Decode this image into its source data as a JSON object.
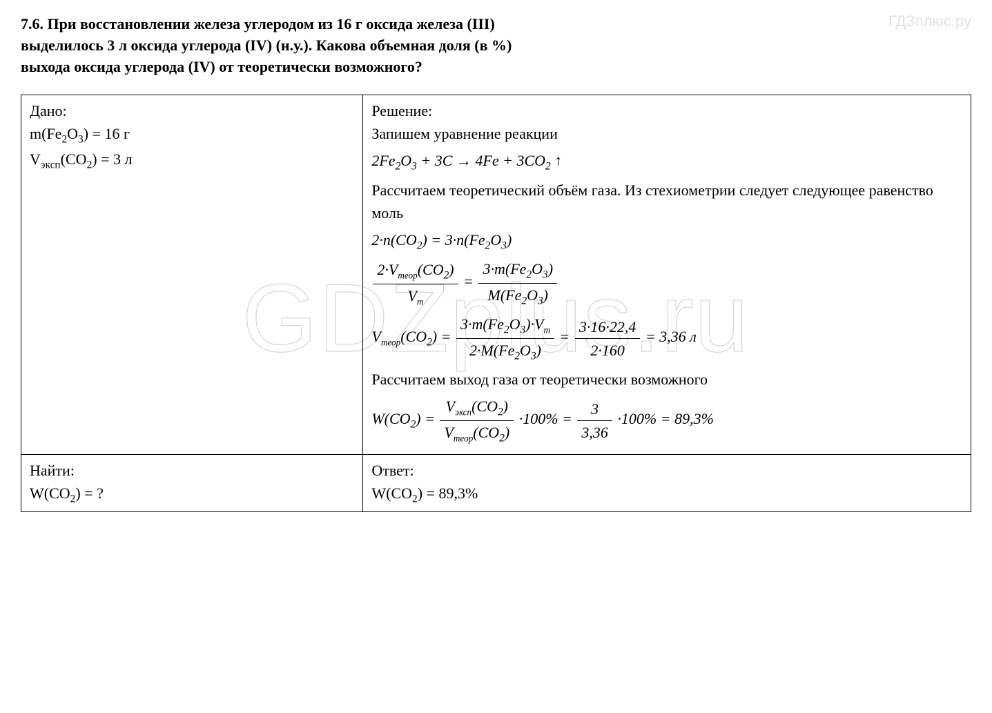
{
  "watermark": {
    "top_right": "ГДЗплюс.ру",
    "center": "GDZplus.ru"
  },
  "problem": {
    "number": "7.6.",
    "text_line1": "При восстановлении железа углеродом из 16 г оксида железа (III)",
    "text_line2": "выделилось 3 л оксида углерода (IV) (н.у.). Какова объемная доля (в %)",
    "text_line3": "выхода оксида углерода (IV) от теоретически возможного?"
  },
  "given": {
    "header": "Дано:",
    "mass_label": "m(Fe",
    "mass_sub": "2",
    "mass_label2": "O",
    "mass_sub2": "3",
    "mass_label3": ") = 16 г",
    "vol_label": "V",
    "vol_sub": "эксп",
    "vol_label2": "(CO",
    "vol_sub2": "2",
    "vol_label3": ") = 3 л"
  },
  "find": {
    "header": "Найти:",
    "w_label": "W(CO",
    "w_sub": "2",
    "w_label2": ") = ?"
  },
  "solution": {
    "header": "Решение:",
    "step1_text": "Запишем уравнение реакции",
    "equation": {
      "lhs_coef1": "2",
      "lhs_species1": "Fe",
      "lhs_sub1a": "2",
      "lhs_species1b": "O",
      "lhs_sub1b": "3",
      "plus1": " + ",
      "lhs_coef2": "3",
      "lhs_species2": "C",
      "arrow": " → ",
      "rhs_coef1": "4",
      "rhs_species1": "Fe",
      "plus2": " + ",
      "rhs_coef2": "3",
      "rhs_species2": "CO",
      "rhs_sub2": "2",
      "gas_arrow": " ↑"
    },
    "step2_text": "Рассчитаем теоретический объём газа. Из стехиометрии следует следующее равенство моль",
    "mole_eq": {
      "lhs_coef": "2·",
      "lhs": "n",
      "lhs_paren": "(CO",
      "lhs_sub": "2",
      "lhs_close": ")",
      "eq": " = ",
      "rhs_coef": "3·",
      "rhs": "n",
      "rhs_paren": "(Fe",
      "rhs_sub1": "2",
      "rhs_mid": "O",
      "rhs_sub2": "3",
      "rhs_close": ")"
    },
    "frac_eq": {
      "num1_a": "2·V",
      "num1_sub": "теор",
      "num1_b": "(CO",
      "num1_sub2": "2",
      "num1_c": ")",
      "den1": "V",
      "den1_sub": "m",
      "eq": " = ",
      "num2_a": "3·m(Fe",
      "num2_sub1": "2",
      "num2_b": "O",
      "num2_sub2": "3",
      "num2_c": ")",
      "den2_a": "M(Fe",
      "den2_sub1": "2",
      "den2_b": "O",
      "den2_sub2": "3",
      "den2_c": ")"
    },
    "vteor_eq": {
      "lhs_v": "V",
      "lhs_sub": "теор",
      "lhs_paren": "(CO",
      "lhs_sub2": "2",
      "lhs_close": ") = ",
      "num1_a": "3·m(Fe",
      "num1_sub1": "2",
      "num1_b": "O",
      "num1_sub2": "3",
      "num1_c": ")·V",
      "num1_sub3": "m",
      "den1_a": "2·M(Fe",
      "den1_sub1": "2",
      "den1_b": "O",
      "den1_sub2": "3",
      "den1_c": ")",
      "eq1": " = ",
      "num2": "3·16·22,4",
      "den2": "2·160",
      "eq2": " = 3,36 ",
      "unit": "л"
    },
    "step3_text": "Рассчитаем выход газа от теоретически возможного",
    "yield_eq": {
      "lhs": "W(CO",
      "lhs_sub": "2",
      "lhs_close": ") = ",
      "num1_v": "V",
      "num1_sub": "эксп",
      "num1_paren": "(CO",
      "num1_sub2": "2",
      "num1_close": ")",
      "den1_v": "V",
      "den1_sub": "теор",
      "den1_paren": "(CO",
      "den1_sub2": "2",
      "den1_close": ")",
      "mul": "·100% = ",
      "num2": "3",
      "den2": "3,36",
      "mul2": "·100% = 89,3%"
    }
  },
  "answer": {
    "header": "Ответ:",
    "w_label": "W(CO",
    "w_sub": "2",
    "w_label2": ") = 89,3%"
  },
  "colors": {
    "text": "#000000",
    "border": "#000000",
    "background": "#ffffff",
    "watermark": "#e0e0e0"
  },
  "fonts": {
    "body_family": "Times New Roman",
    "body_size_pt": 17,
    "watermark_center_size_pt": 100
  }
}
